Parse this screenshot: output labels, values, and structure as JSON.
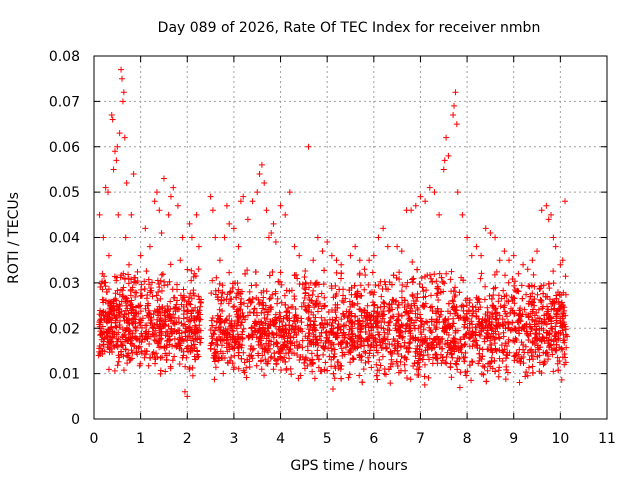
{
  "chart_data": {
    "type": "scatter",
    "title": "Day 089 of 2026, Rate Of TEC Index for receiver nmbn",
    "xlabel": "GPS time / hours",
    "ylabel": "ROTI / TECUs",
    "xlim": [
      0,
      11
    ],
    "ylim": [
      0,
      0.08
    ],
    "x_ticks": [
      "0",
      "1",
      "2",
      "3",
      "4",
      "5",
      "6",
      "7",
      "8",
      "9",
      "10",
      "11"
    ],
    "y_ticks": [
      "0",
      "0.01",
      "0.02",
      "0.03",
      "0.04",
      "0.05",
      "0.06",
      "0.07",
      "0.08"
    ],
    "grid": true,
    "marker": "+",
    "series": [
      {
        "color": "#ff0000",
        "points": [
          [
            0.1,
            0.014
          ],
          [
            0.12,
            0.045
          ],
          [
            0.15,
            0.022
          ],
          [
            0.18,
            0.032
          ],
          [
            0.2,
            0.04
          ],
          [
            0.22,
            0.018
          ],
          [
            0.25,
            0.051
          ],
          [
            0.28,
            0.028
          ],
          [
            0.3,
            0.05
          ],
          [
            0.32,
            0.036
          ],
          [
            0.35,
            0.025
          ],
          [
            0.38,
            0.067
          ],
          [
            0.4,
            0.066
          ],
          [
            0.42,
            0.055
          ],
          [
            0.45,
            0.059
          ],
          [
            0.48,
            0.057
          ],
          [
            0.5,
            0.06
          ],
          [
            0.52,
            0.045
          ],
          [
            0.55,
            0.063
          ],
          [
            0.58,
            0.077
          ],
          [
            0.6,
            0.075
          ],
          [
            0.62,
            0.07
          ],
          [
            0.64,
            0.072
          ],
          [
            0.66,
            0.062
          ],
          [
            0.68,
            0.04
          ],
          [
            0.7,
            0.052
          ],
          [
            0.75,
            0.034
          ],
          [
            0.8,
            0.045
          ],
          [
            0.85,
            0.054
          ],
          [
            0.9,
            0.03
          ],
          [
            0.95,
            0.025
          ],
          [
            1.0,
            0.036
          ],
          [
            1.1,
            0.042
          ],
          [
            1.2,
            0.038
          ],
          [
            1.3,
            0.048
          ],
          [
            1.35,
            0.05
          ],
          [
            1.4,
            0.046
          ],
          [
            1.45,
            0.041
          ],
          [
            1.5,
            0.053
          ],
          [
            1.6,
            0.045
          ],
          [
            1.65,
            0.049
          ],
          [
            1.7,
            0.051
          ],
          [
            1.8,
            0.047
          ],
          [
            1.85,
            0.035
          ],
          [
            1.9,
            0.04
          ],
          [
            1.95,
            0.006
          ],
          [
            2.0,
            0.005
          ],
          [
            2.05,
            0.043
          ],
          [
            2.1,
            0.04
          ],
          [
            2.15,
            0.032
          ],
          [
            2.2,
            0.045
          ],
          [
            2.25,
            0.038
          ],
          [
            2.5,
            0.049
          ],
          [
            2.55,
            0.046
          ],
          [
            2.6,
            0.04
          ],
          [
            2.7,
            0.035
          ],
          [
            2.8,
            0.04
          ],
          [
            2.85,
            0.047
          ],
          [
            2.9,
            0.043
          ],
          [
            3.0,
            0.042
          ],
          [
            3.1,
            0.038
          ],
          [
            3.15,
            0.048
          ],
          [
            3.2,
            0.049
          ],
          [
            3.3,
            0.044
          ],
          [
            3.4,
            0.048
          ],
          [
            3.5,
            0.05
          ],
          [
            3.55,
            0.054
          ],
          [
            3.6,
            0.056
          ],
          [
            3.65,
            0.052
          ],
          [
            3.7,
            0.046
          ],
          [
            3.75,
            0.04
          ],
          [
            3.8,
            0.041
          ],
          [
            3.85,
            0.043
          ],
          [
            3.9,
            0.039
          ],
          [
            4.0,
            0.047
          ],
          [
            4.1,
            0.045
          ],
          [
            4.2,
            0.05
          ],
          [
            4.3,
            0.038
          ],
          [
            4.4,
            0.036
          ],
          [
            4.6,
            0.06
          ],
          [
            4.7,
            0.035
          ],
          [
            4.8,
            0.04
          ],
          [
            4.9,
            0.037
          ],
          [
            5.0,
            0.039
          ],
          [
            5.1,
            0.036
          ],
          [
            5.2,
            0.035
          ],
          [
            5.3,
            0.034
          ],
          [
            5.5,
            0.036
          ],
          [
            5.6,
            0.038
          ],
          [
            5.7,
            0.035
          ],
          [
            5.8,
            0.033
          ],
          [
            5.9,
            0.035
          ],
          [
            6.0,
            0.036
          ],
          [
            6.1,
            0.04
          ],
          [
            6.2,
            0.042
          ],
          [
            6.3,
            0.038
          ],
          [
            6.5,
            0.038
          ],
          [
            6.6,
            0.037
          ],
          [
            6.7,
            0.046
          ],
          [
            6.8,
            0.046
          ],
          [
            6.9,
            0.047
          ],
          [
            7.0,
            0.049
          ],
          [
            7.1,
            0.048
          ],
          [
            7.2,
            0.051
          ],
          [
            7.3,
            0.05
          ],
          [
            7.4,
            0.045
          ],
          [
            7.5,
            0.055
          ],
          [
            7.52,
            0.057
          ],
          [
            7.55,
            0.062
          ],
          [
            7.6,
            0.058
          ],
          [
            7.7,
            0.067
          ],
          [
            7.72,
            0.069
          ],
          [
            7.75,
            0.072
          ],
          [
            7.78,
            0.065
          ],
          [
            7.8,
            0.05
          ],
          [
            7.9,
            0.045
          ],
          [
            8.0,
            0.04
          ],
          [
            8.1,
            0.036
          ],
          [
            8.2,
            0.038
          ],
          [
            8.3,
            0.036
          ],
          [
            8.4,
            0.042
          ],
          [
            8.5,
            0.041
          ],
          [
            8.6,
            0.04
          ],
          [
            8.7,
            0.035
          ],
          [
            8.8,
            0.037
          ],
          [
            8.9,
            0.035
          ],
          [
            9.0,
            0.036
          ],
          [
            9.1,
            0.032
          ],
          [
            9.2,
            0.034
          ],
          [
            9.3,
            0.033
          ],
          [
            9.4,
            0.035
          ],
          [
            9.5,
            0.037
          ],
          [
            9.6,
            0.046
          ],
          [
            9.7,
            0.047
          ],
          [
            9.75,
            0.044
          ],
          [
            9.8,
            0.045
          ],
          [
            9.85,
            0.04
          ],
          [
            9.9,
            0.038
          ],
          [
            10.0,
            0.034
          ],
          [
            10.05,
            0.035
          ],
          [
            10.1,
            0.048
          ]
        ],
        "bulk": [
          {
            "x": [
              0.1,
              2.3
            ],
            "y": [
              0.008,
              0.036
            ],
            "y_mean": 0.019
          },
          {
            "x": [
              2.5,
              10.15
            ],
            "y": [
              0.006,
              0.036
            ],
            "y_mean": 0.019
          }
        ]
      }
    ]
  }
}
